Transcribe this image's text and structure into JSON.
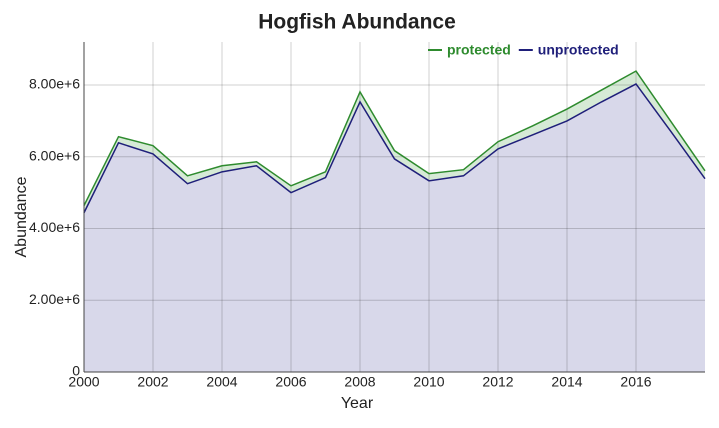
{
  "chart_data": {
    "type": "area",
    "title": "Hogfish Abundance",
    "x_label": "Year",
    "y_label": "Abundance",
    "x": [
      2000,
      2001,
      2002,
      2003,
      2004,
      2005,
      2006,
      2007,
      2008,
      2009,
      2010,
      2011,
      2012,
      2013,
      2014,
      2015,
      2016,
      2017,
      2018
    ],
    "series": [
      {
        "name": "protected",
        "color": "#2e8b2e",
        "fill": "#d6ead6",
        "values": [
          4640000,
          6560000,
          6310000,
          5470000,
          5750000,
          5860000,
          5190000,
          5580000,
          7810000,
          6170000,
          5530000,
          5640000,
          6420000,
          6860000,
          7330000,
          7860000,
          8390000,
          7000000,
          5610000
        ]
      },
      {
        "name": "unprotected",
        "color": "#1f1f7a",
        "fill": "#d8d8ea",
        "values": [
          4440000,
          6390000,
          6080000,
          5250000,
          5580000,
          5750000,
          5000000,
          5420000,
          7530000,
          5940000,
          5330000,
          5470000,
          6220000,
          6610000,
          7000000,
          7530000,
          8030000,
          6720000,
          5390000
        ]
      }
    ],
    "xlim": [
      2000,
      2018
    ],
    "xticks": [
      2000,
      2002,
      2004,
      2006,
      2008,
      2010,
      2012,
      2014,
      2016
    ],
    "ylim": [
      0,
      9200000
    ],
    "yticks": [
      0,
      {
        "value": 2000000,
        "label": "2.00e+6"
      },
      {
        "value": 4000000,
        "label": "4.00e+6"
      },
      {
        "value": 6000000,
        "label": "6.00e+6"
      },
      {
        "value": 8000000,
        "label": "8.00e+6"
      }
    ],
    "grid": true,
    "legend": "top-right"
  }
}
